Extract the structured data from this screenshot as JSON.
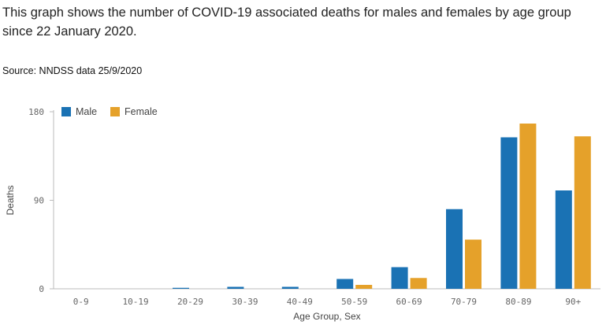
{
  "description": "This graph shows the number of COVID-19 associated deaths for males and females by age group since 22 January 2020.",
  "source": "Source: NNDSS data 25/9/2020",
  "chart_data": {
    "type": "bar",
    "categories": [
      "0-9",
      "10-19",
      "20-29",
      "30-39",
      "40-49",
      "50-59",
      "60-69",
      "70-79",
      "80-89",
      "90+"
    ],
    "series": [
      {
        "name": "Male",
        "color": "#1a72b4",
        "values": [
          0,
          0,
          1,
          2,
          2,
          10,
          22,
          81,
          154,
          100
        ]
      },
      {
        "name": "Female",
        "color": "#e5a12a",
        "values": [
          0,
          0,
          0,
          0,
          0,
          4,
          11,
          50,
          168,
          155
        ]
      }
    ],
    "xlabel": "Age Group, Sex",
    "ylabel": "Deaths",
    "ylim": [
      0,
      180
    ],
    "yticks": [
      0,
      90,
      180
    ],
    "legend": "top-left",
    "grid": false
  }
}
